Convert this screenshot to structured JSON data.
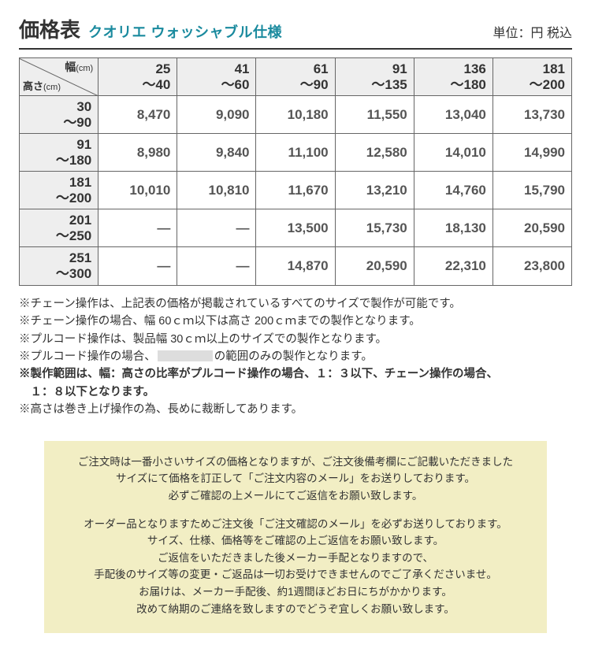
{
  "header": {
    "title": "価格表",
    "subtitle": "クオリエ ウォッシャブル仕様",
    "subtitle_color": "#1a8a9e",
    "unit": "単位：円 税込"
  },
  "table": {
    "corner_top": "幅",
    "corner_top_unit": "(cm)",
    "corner_bottom": "高さ",
    "corner_bottom_unit": "(cm)",
    "col_headers": [
      {
        "l1": "25",
        "l2": "〜40"
      },
      {
        "l1": "41",
        "l2": "〜60"
      },
      {
        "l1": "61",
        "l2": "〜90"
      },
      {
        "l1": "91",
        "l2": "〜135"
      },
      {
        "l1": "136",
        "l2": "〜180"
      },
      {
        "l1": "181",
        "l2": "〜200"
      }
    ],
    "rows": [
      {
        "h1": "30",
        "h2": "〜90",
        "cells": [
          "8,470",
          "9,090",
          "10,180",
          "11,550",
          "13,040",
          "13,730"
        ]
      },
      {
        "h1": "91",
        "h2": "〜180",
        "cells": [
          "8,980",
          "9,840",
          "11,100",
          "12,580",
          "14,010",
          "14,990"
        ]
      },
      {
        "h1": "181",
        "h2": "〜200",
        "cells": [
          "10,010",
          "10,810",
          "11,670",
          "13,210",
          "14,760",
          "15,790"
        ]
      },
      {
        "h1": "201",
        "h2": "〜250",
        "cells": [
          "―",
          "―",
          "13,500",
          "15,730",
          "18,130",
          "20,590"
        ]
      },
      {
        "h1": "251",
        "h2": "〜300",
        "cells": [
          "―",
          "―",
          "14,870",
          "20,590",
          "22,310",
          "23,800"
        ]
      }
    ],
    "header_bg": "#eeeeee",
    "border_color": "#666666",
    "corner_width_pct": 14.3
  },
  "notes": {
    "n1": "※チェーン操作は、上記表の価格が掲載されているすべてのサイズで製作が可能です。",
    "n2": "※チェーン操作の場合、幅 60ｃｍ以下は高さ 200ｃｍまでの製作となります。",
    "n3": "※プルコード操作は、製品幅 30ｃｍ以上のサイズでの製作となります。",
    "n4a": "※プルコード操作の場合、",
    "n4b": "の範囲のみの製作となります。",
    "n5a": "※製作範囲は、幅：高さの比率がプルコード操作の場合、１：３以下、チェーン操作の場合、",
    "n5b": "１：８以下となります。",
    "n6": "※高さは巻き上げ操作の為、長めに裁断してあります。"
  },
  "order_note": {
    "bg_color": "#f2eec4",
    "p1": "ご注文時は一番小さいサイズの価格となりますが、ご注文後備考欄にご記載いただきました",
    "p2": "サイズにて価格を訂正して「ご注文内容のメール」をお送りしております。",
    "p3": "必ずご確認の上メールにてご返信をお願い致します。",
    "p4": "オーダー品となりますためご注文後「ご注文確認のメール」を必ずお送りしております。",
    "p5": "サイズ、仕様、価格等をご確認の上ご返信をお願い致します。",
    "p6": "ご返信をいただきました後メーカー手配となりますので、",
    "p7": "手配後のサイズ等の変更・ご返品は一切お受けできませんのでご了承くださいませ。",
    "p8": "お届けは、メーカー手配後、約1週間ほどお日にちがかかります。",
    "p9": "改めて納期のご連絡を致しますのでどうぞ宜しくお願い致します。"
  }
}
